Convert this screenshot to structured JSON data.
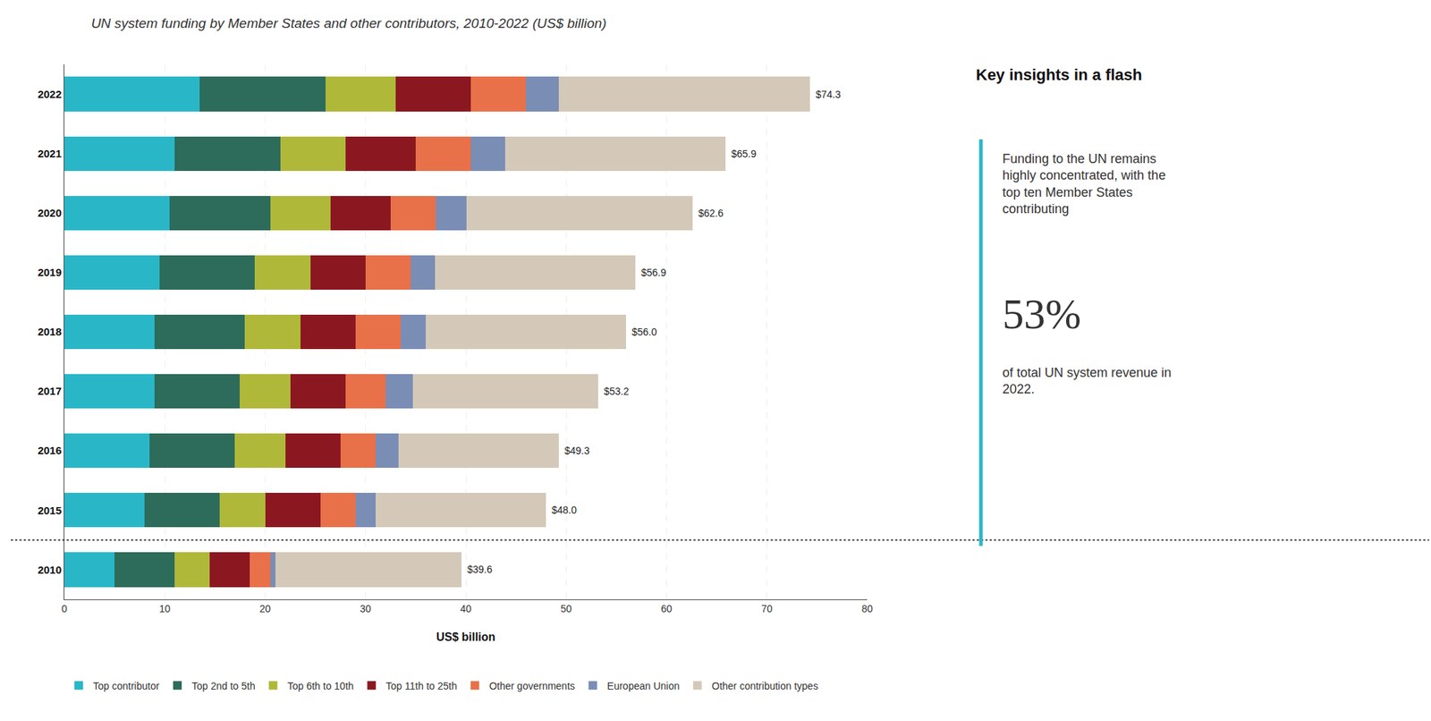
{
  "chart_data": {
    "type": "bar",
    "orientation": "horizontal",
    "stacked": true,
    "title": "UN system funding by Member States and other contributors, 2010-2022 (US$ billion)",
    "xlabel": "US$ billion",
    "categories": [
      "2022",
      "2021",
      "2020",
      "2019",
      "2018",
      "2017",
      "2016",
      "2015",
      "2010"
    ],
    "series": [
      {
        "name": "Top contributor",
        "color": "#29b7c8",
        "values": [
          13.5,
          11.0,
          10.5,
          9.5,
          9.0,
          9.0,
          8.5,
          8.0,
          5.0
        ]
      },
      {
        "name": "Top 2nd to 5th",
        "color": "#2d6b5a",
        "values": [
          12.5,
          10.5,
          10.0,
          9.5,
          9.0,
          8.5,
          8.5,
          7.5,
          6.0
        ]
      },
      {
        "name": "Top 6th to 10th",
        "color": "#b0b83a",
        "values": [
          7.0,
          6.5,
          6.0,
          5.5,
          5.5,
          5.0,
          5.0,
          4.5,
          3.5
        ]
      },
      {
        "name": "Top 11th to 25th",
        "color": "#8b1820",
        "values": [
          7.5,
          7.0,
          6.0,
          5.5,
          5.5,
          5.5,
          5.5,
          5.5,
          4.0
        ]
      },
      {
        "name": "Other governments",
        "color": "#e8714a",
        "values": [
          5.5,
          5.5,
          4.5,
          4.5,
          4.5,
          4.0,
          3.5,
          3.5,
          2.0
        ]
      },
      {
        "name": "European Union",
        "color": "#7a8db5",
        "values": [
          3.3,
          3.4,
          3.1,
          2.4,
          2.5,
          2.7,
          2.3,
          2.0,
          0.5
        ]
      },
      {
        "name": "Other contribution types",
        "color": "#d4c9b8",
        "values": [
          25.0,
          22.0,
          22.5,
          20.0,
          20.0,
          18.5,
          16.0,
          17.0,
          18.6
        ]
      }
    ],
    "totals": [
      74.3,
      65.9,
      62.6,
      56.9,
      56.0,
      53.2,
      49.3,
      48.0,
      39.6
    ],
    "total_labels": [
      "$74.3",
      "$65.9",
      "$62.6",
      "$56.9",
      "$56.0",
      "$53.2",
      "$49.3",
      "$48.0",
      "$39.6"
    ],
    "xlim": [
      0,
      80
    ],
    "xticks": [
      0,
      10,
      20,
      30,
      40,
      50,
      60,
      70,
      80
    ],
    "grid": true,
    "legend": "bottom",
    "annotations": [
      "Key insights in a flash",
      "Funding to the UN remains\nhighly concentrated, with the\ntop ten Member States\ncontributing",
      "53%",
      "of total UN system revenue in\n2022."
    ]
  }
}
